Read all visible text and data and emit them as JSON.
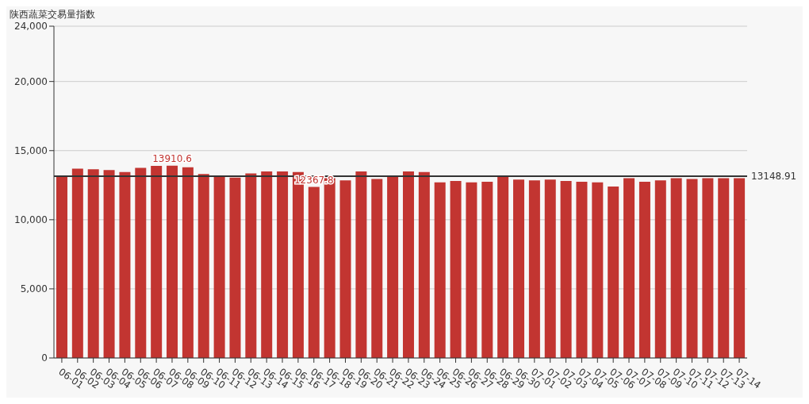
{
  "chart_data": {
    "type": "bar",
    "title": "陕西蔬菜交易量指数",
    "categories": [
      "06-01",
      "06-02",
      "06-03",
      "06-04",
      "06-05",
      "06-06",
      "06-07",
      "06-08",
      "06-09",
      "06-10",
      "06-11",
      "06-12",
      "06-13",
      "06-14",
      "06-15",
      "06-16",
      "06-17",
      "06-18",
      "06-19",
      "06-20",
      "06-21",
      "06-22",
      "06-23",
      "06-24",
      "06-25",
      "06-26",
      "06-27",
      "06-28",
      "06-29",
      "06-30",
      "07-01",
      "07-02",
      "07-03",
      "07-04",
      "07-05",
      "07-06",
      "07-07",
      "07-08",
      "07-09",
      "07-10",
      "07-11",
      "07-12",
      "07-13",
      "07-14"
    ],
    "series": [
      {
        "color": "#c23531",
        "values": [
          13100,
          13700,
          13650,
          13600,
          13450,
          13750,
          13900,
          13910.6,
          13800,
          13300,
          13150,
          13050,
          13350,
          13500,
          13500,
          13450,
          12367.8,
          13000,
          12850,
          13500,
          12950,
          13100,
          13500,
          13450,
          12700,
          12800,
          12700,
          12750,
          13100,
          12900,
          12850,
          12900,
          12800,
          12750,
          12700,
          12400,
          13000,
          12750,
          12850,
          13000,
          12950,
          13000,
          13000,
          13000
        ],
        "value_labels": [
          null,
          null,
          null,
          null,
          null,
          null,
          null,
          "13910.6",
          null,
          null,
          null,
          null,
          null,
          null,
          null,
          null,
          "12367.8",
          null,
          null,
          null,
          null,
          null,
          null,
          null,
          null,
          null,
          null,
          null,
          null,
          null,
          null,
          null,
          null,
          null,
          null,
          null,
          null,
          null,
          null,
          null,
          null,
          null,
          null,
          null
        ]
      }
    ],
    "ylim": [
      0,
      24000
    ],
    "yticks": [
      {
        "value": 0,
        "label": "0"
      },
      {
        "value": 5000,
        "label": "5,000"
      },
      {
        "value": 10000,
        "label": "10,000"
      },
      {
        "value": 15000,
        "label": "15,000"
      },
      {
        "value": 20000,
        "label": "20,000"
      },
      {
        "value": 24000,
        "label": "24,000"
      }
    ],
    "grid": "y",
    "ref_lines": [
      {
        "axis": "y",
        "value": 13148.91,
        "label": "13148.91",
        "color": "#333333"
      }
    ]
  }
}
